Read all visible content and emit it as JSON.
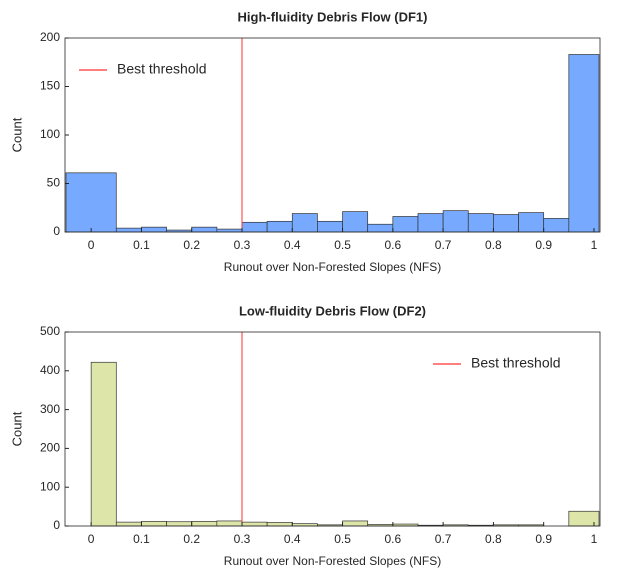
{
  "chart_data": [
    {
      "type": "histogram",
      "title": "High-fluidity Debris Flow (DF1)",
      "xlabel": "Runout over Non-Forested Slopes (NFS)",
      "ylabel": "Count",
      "bins": [
        -0.05,
        0.05,
        0.1,
        0.15,
        0.2,
        0.25,
        0.3,
        0.35,
        0.4,
        0.45,
        0.5,
        0.55,
        0.6,
        0.65,
        0.7,
        0.75,
        0.8,
        0.85,
        0.9,
        0.95,
        1.01
      ],
      "values": [
        61,
        4,
        5,
        2,
        5,
        3,
        10,
        11,
        19,
        11,
        21,
        8,
        16,
        19,
        22,
        19,
        18,
        20,
        14,
        183
      ],
      "color": "#77aaff",
      "xlim": [
        -0.052,
        1.012
      ],
      "ylim": [
        0,
        200
      ],
      "xticks": [
        0,
        0.1,
        0.2,
        0.3,
        0.4,
        0.5,
        0.6,
        0.7,
        0.8,
        0.9,
        1
      ],
      "yticks": [
        0,
        50,
        100,
        150,
        200
      ],
      "threshold": {
        "name": "Best threshold",
        "value": 0.3,
        "color": "#ff3333"
      },
      "legend": "upper-left"
    },
    {
      "type": "histogram",
      "title": "Low-fluidity Debris Flow (DF2)",
      "xlabel": "Runout over Non-Forested Slopes (NFS)",
      "ylabel": "Count",
      "bins": [
        0,
        0.05,
        0.1,
        0.15,
        0.2,
        0.25,
        0.3,
        0.35,
        0.4,
        0.45,
        0.5,
        0.55,
        0.6,
        0.65,
        0.7,
        0.75,
        0.8,
        0.85,
        0.9,
        0.95,
        1.01
      ],
      "values": [
        422,
        10,
        12,
        11,
        12,
        13,
        10,
        9,
        6,
        3,
        13,
        4,
        5,
        2,
        3,
        2,
        3,
        3,
        0,
        38
      ],
      "color": "#dde6a8",
      "xlim": [
        -0.052,
        1.012
      ],
      "ylim": [
        0,
        500
      ],
      "xticks": [
        0,
        0.1,
        0.2,
        0.3,
        0.4,
        0.5,
        0.6,
        0.7,
        0.8,
        0.9,
        1
      ],
      "yticks": [
        0,
        100,
        200,
        300,
        400,
        500
      ],
      "threshold": {
        "name": "Best threshold",
        "value": 0.3,
        "color": "#ff3333"
      },
      "legend": "upper-right"
    }
  ]
}
